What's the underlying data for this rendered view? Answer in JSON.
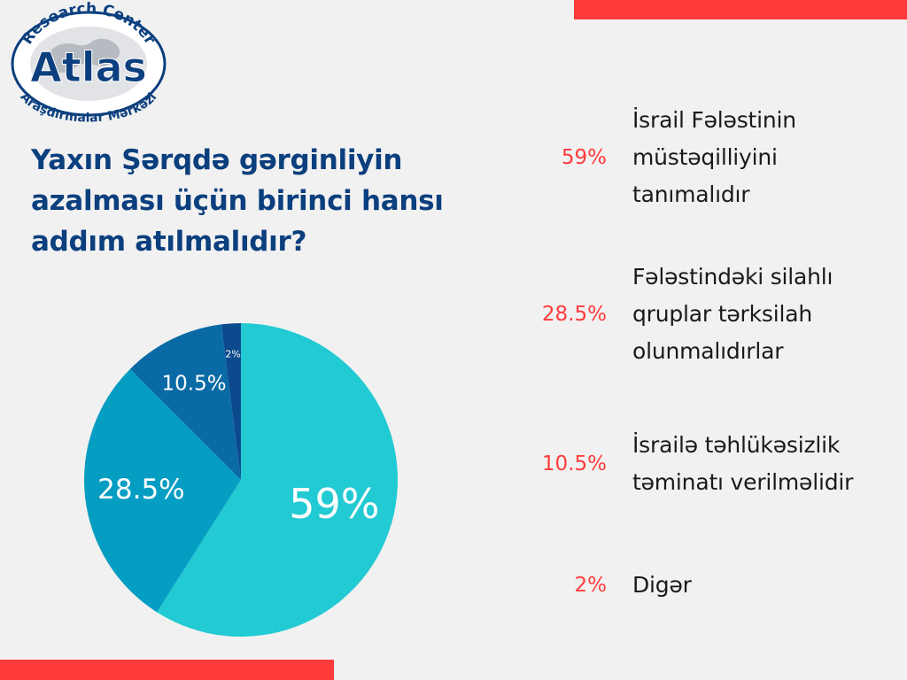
{
  "colors": {
    "accent_red": "#ff3b3b",
    "title_navy": "#0b3f7e",
    "slice_colors": [
      "#22cad3",
      "#069dc3",
      "#0a6aa6",
      "#0b4a8c"
    ]
  },
  "logo": {
    "top_text": "Research Center",
    "name": "Atlas",
    "bottom_text": "Araşdırmalar Mərkəzi"
  },
  "chart_data": {
    "type": "pie",
    "title": "Yaxın Şərqdə gərginliyin azalması üçün birinci hansı addım atılmalıdır?",
    "unit": "%",
    "slices": [
      {
        "label": "İsrail Fələstinin müstəqilliyini tanımalıdır",
        "value": 59,
        "display": "59%"
      },
      {
        "label": "Fələstindəki silahlı qruplar tərksilah olunmalıdırlar",
        "value": 28.5,
        "display": "28.5%"
      },
      {
        "label": "İsrailə təhlükəsizlik təminatı verilməlidir",
        "value": 10.5,
        "display": "10.5%"
      },
      {
        "label": "Digər",
        "value": 2,
        "display": "2%"
      }
    ]
  }
}
